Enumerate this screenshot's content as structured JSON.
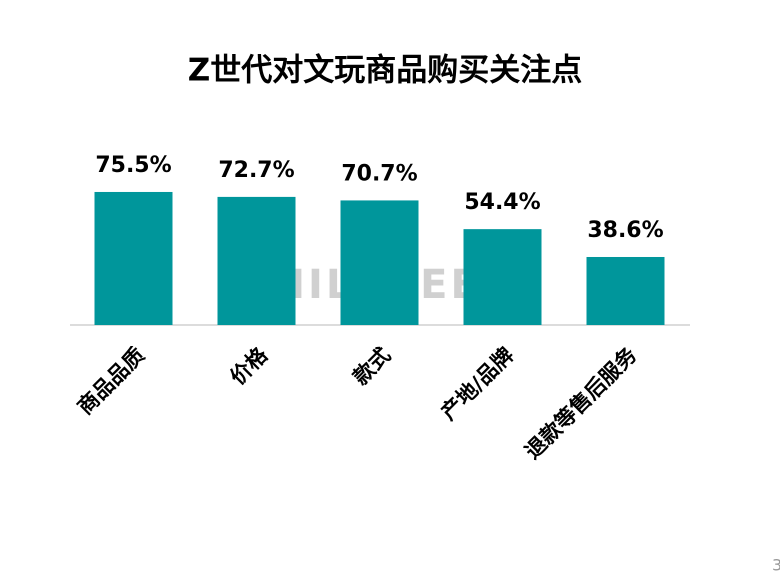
{
  "chart_data": {
    "type": "bar",
    "title": "Z世代对文玩商品购买关注点",
    "categories": [
      "商品品质",
      "价格",
      "款式",
      "产地/品牌",
      "退款等售后服务"
    ],
    "values": [
      75.5,
      72.7,
      70.7,
      54.4,
      38.6
    ],
    "value_labels": [
      "75.5%",
      "72.7%",
      "70.7%",
      "54.4%",
      "38.6%"
    ],
    "color": "#00969b",
    "watermark": "MILKSEEK",
    "page_number": "3"
  }
}
